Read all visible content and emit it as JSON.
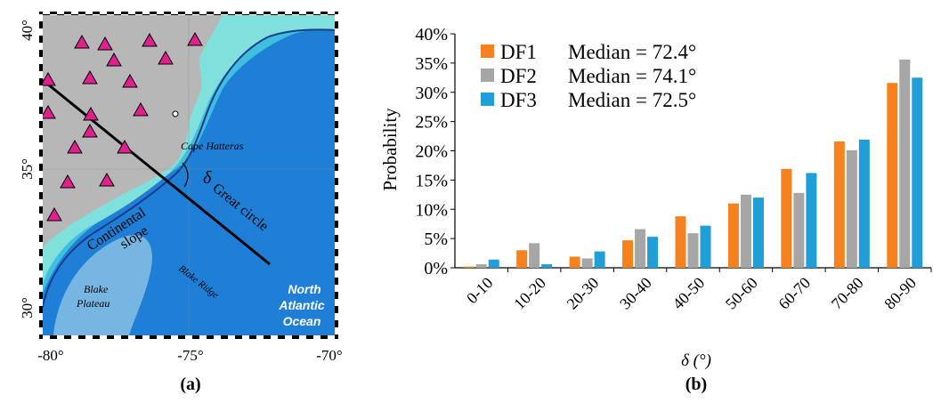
{
  "map_panel": {
    "panel_label": "(a)",
    "lon_ticks": [
      "-80°",
      "-75°",
      "-70°"
    ],
    "lat_ticks": [
      "40°",
      "35°",
      "30°"
    ],
    "labels": {
      "cape_hatteras": "Cape Hatteras",
      "delta": "δ",
      "continental": "Continental",
      "slope": "slope",
      "great_circle": "Great circle",
      "blake_plateau_1": "Blake",
      "blake_plateau_2": "Plateau",
      "blake_ridge": "Blake Ridge",
      "ocean_1": "North",
      "ocean_2": "Atlantic",
      "ocean_3": "Ocean"
    },
    "colors": {
      "land": "#b7b7b7",
      "shelf": "#7fe0dc",
      "slope": "#3fbfe0",
      "deep": "#1f7fd6",
      "station": "#e0208f"
    },
    "station_icon": "triangle-marker-icon"
  },
  "chart_data": {
    "type": "bar",
    "panel_label": "(b)",
    "categories": [
      "0-10",
      "10-20",
      "20-30",
      "30-40",
      "40-50",
      "50-60",
      "60-70",
      "70-80",
      "80-90"
    ],
    "series": [
      {
        "name": "DF1",
        "median_label": "Median = 72.4°",
        "color": "#f5821f",
        "values": [
          0.2,
          3.0,
          1.9,
          4.7,
          8.8,
          11.0,
          16.9,
          21.6,
          31.6
        ]
      },
      {
        "name": "DF2",
        "median_label": "Median = 74.1°",
        "color": "#a6a6a6",
        "values": [
          0.6,
          4.2,
          1.6,
          6.6,
          5.9,
          12.5,
          12.8,
          20.1,
          35.6
        ]
      },
      {
        "name": "DF3",
        "median_label": "Median = 72.5°",
        "color": "#1f9ed8",
        "values": [
          1.4,
          0.6,
          2.8,
          5.3,
          7.2,
          12.0,
          16.2,
          21.9,
          32.5
        ]
      }
    ],
    "ylabel": "Probability",
    "xlabel": "δ (°)",
    "ylim": [
      0,
      40
    ],
    "yticks": [
      "0%",
      "5%",
      "10%",
      "15%",
      "20%",
      "25%",
      "30%",
      "35%",
      "40%"
    ],
    "legend_position": "top-left",
    "grid": false
  }
}
